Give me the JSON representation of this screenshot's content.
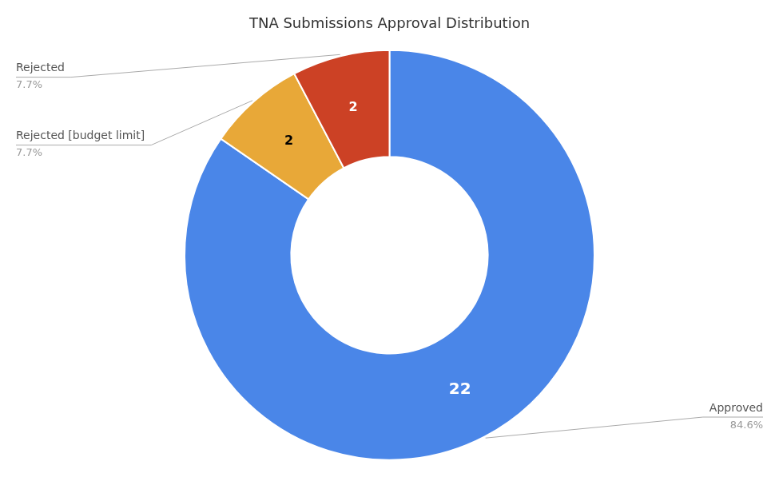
{
  "chart_data": {
    "type": "doughnut",
    "title": "TNA Submissions Approval Distribution",
    "categories": [
      "Approved",
      "Rejected [budget limit]",
      "Rejected"
    ],
    "values": [
      22,
      2,
      2
    ],
    "colors": [
      "#4A86E8",
      "#E8A838",
      "#CC4125"
    ],
    "share_labels": [
      "84.6%",
      "7.7%",
      "7.7%"
    ],
    "data_labels": true
  }
}
